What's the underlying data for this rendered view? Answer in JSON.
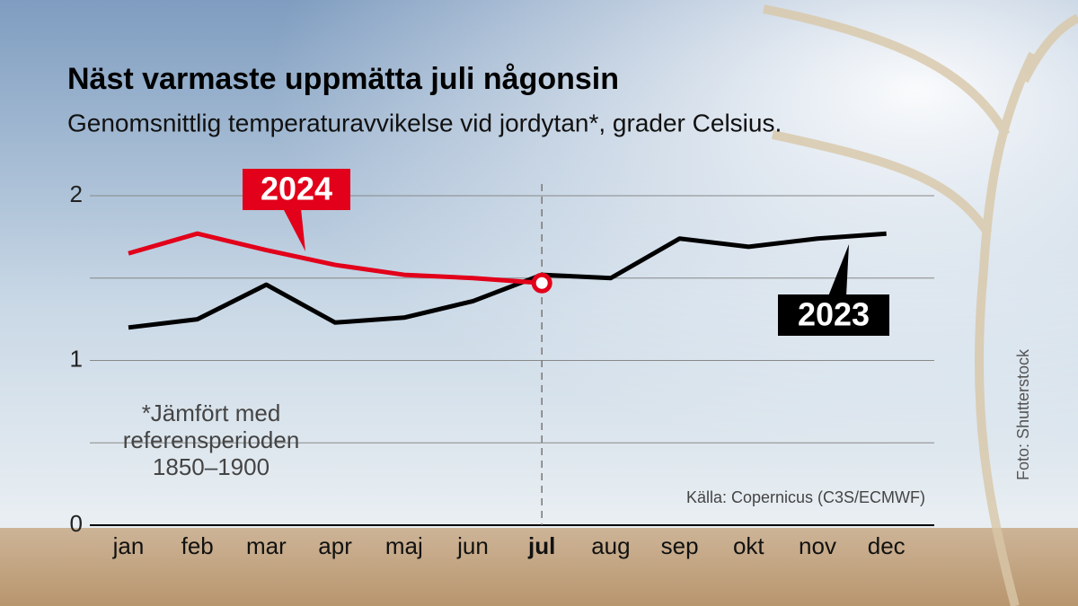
{
  "chart_data": {
    "type": "line",
    "title": "Näst varmaste uppmätta juli någonsin",
    "subtitle": "Genomsnittlig temperaturavvikelse vid jordytan*, grader Celsius.",
    "categories": [
      "jan",
      "feb",
      "mar",
      "apr",
      "maj",
      "jun",
      "jul",
      "aug",
      "sep",
      "okt",
      "nov",
      "dec"
    ],
    "highlight_category": "jul",
    "series": [
      {
        "name": "2024",
        "color": "#e2001a",
        "values": [
          1.65,
          1.77,
          1.67,
          1.58,
          1.52,
          1.5,
          1.47,
          null,
          null,
          null,
          null,
          null
        ]
      },
      {
        "name": "2023",
        "color": "#000000",
        "values": [
          1.2,
          1.25,
          1.46,
          1.23,
          1.26,
          1.36,
          1.52,
          1.5,
          1.74,
          1.69,
          1.74,
          1.77
        ]
      }
    ],
    "ylim": [
      0,
      2
    ],
    "yticks": [
      0,
      1,
      2
    ],
    "minor_yticks": [
      0.5,
      1.5
    ],
    "grid": true,
    "footnote": [
      "*Jämfört med",
      "referensperioden",
      "1850–1900"
    ],
    "source": "Källa: Copernicus (C3S/ECMWF)",
    "photo_credit": "Foto: Shutterstock"
  }
}
